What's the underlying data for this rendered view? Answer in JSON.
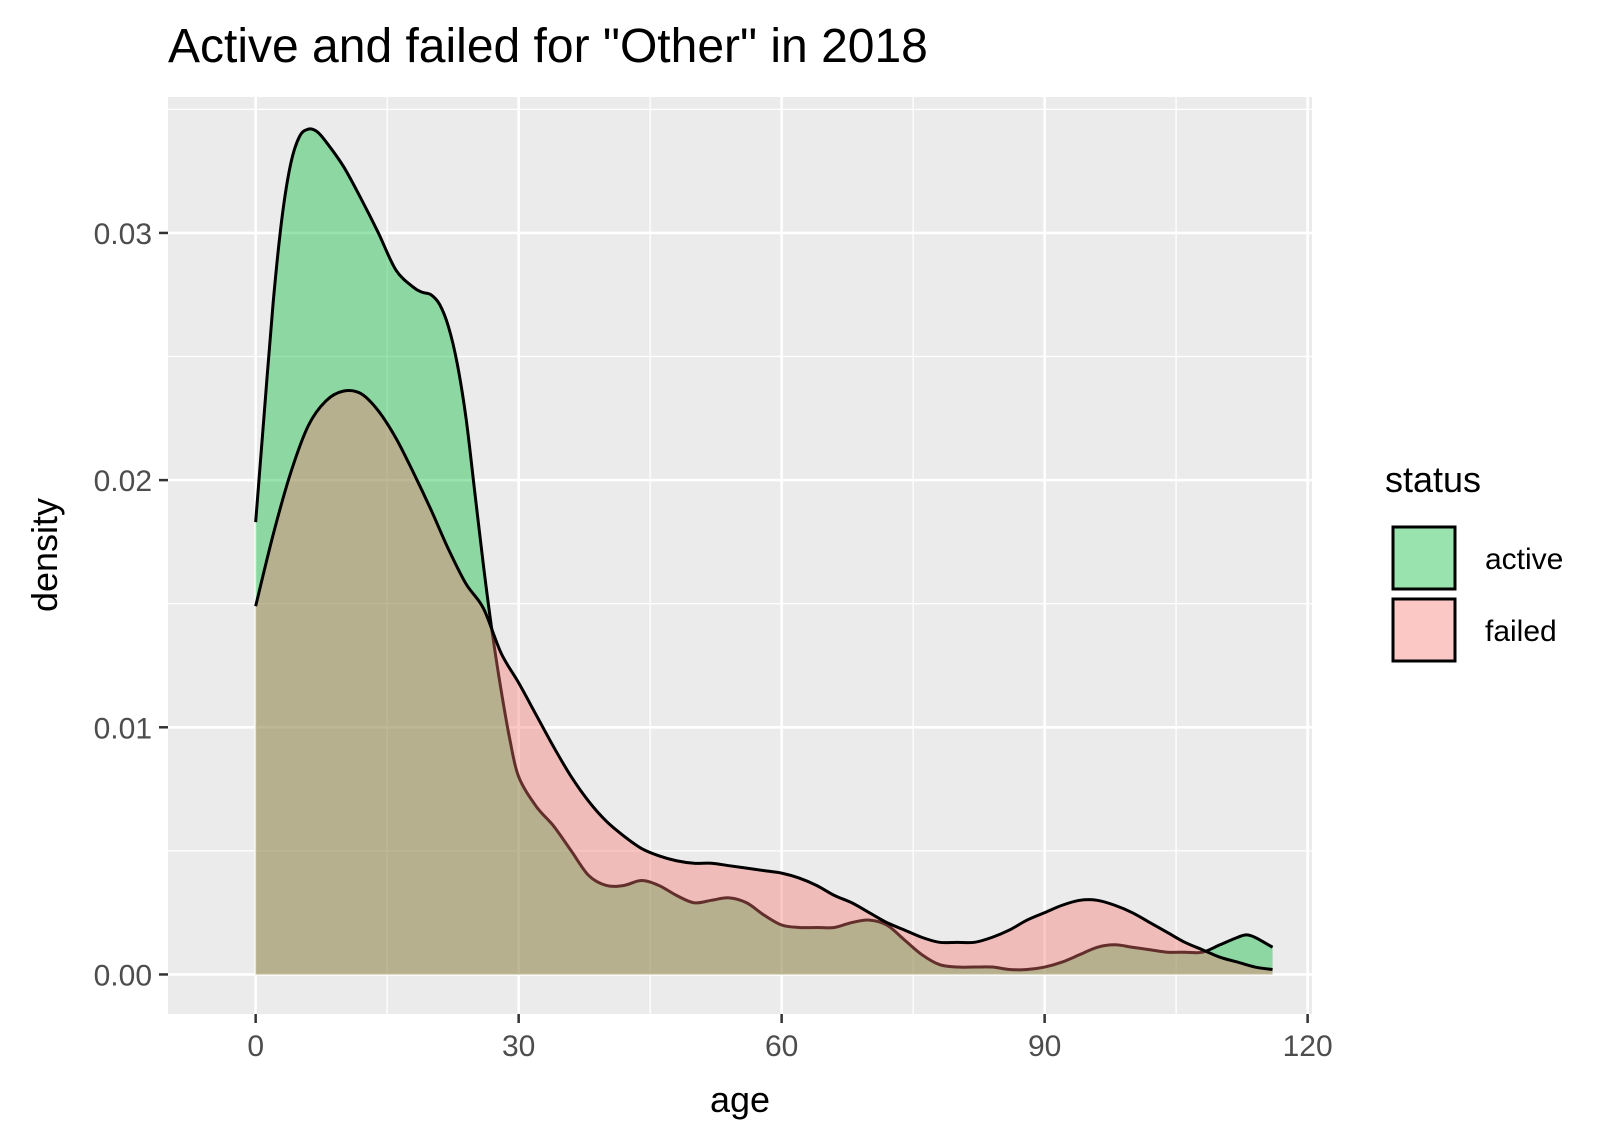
{
  "chart_data": {
    "type": "area",
    "title": "Active and failed for \"Other\" in 2018",
    "xlabel": "age",
    "ylabel": "density",
    "xlim": [
      -10,
      120.5
    ],
    "ylim": [
      -0.0016,
      0.0355
    ],
    "x_ticks": [
      0,
      30,
      60,
      90,
      120
    ],
    "x_tick_labels": [
      "0",
      "30",
      "60",
      "90",
      "120"
    ],
    "y_ticks": [
      0.0,
      0.01,
      0.02,
      0.03
    ],
    "y_tick_labels": [
      "0.00",
      "0.01",
      "0.02",
      "0.03"
    ],
    "grid": true,
    "legend": {
      "title": "status",
      "position": "right"
    },
    "series": [
      {
        "name": "active",
        "color": "#00BA38",
        "fill_opacity": 0.4,
        "x": [
          0,
          1,
          2,
          3,
          4,
          5,
          6,
          7,
          8,
          10,
          12,
          14,
          16,
          18,
          19,
          20,
          21,
          22,
          23,
          24,
          25,
          26,
          27,
          28,
          29,
          30,
          32,
          34,
          36,
          38,
          40,
          42,
          44,
          46,
          48,
          50,
          52,
          54,
          56,
          58,
          60,
          62,
          64,
          66,
          68,
          70,
          72,
          74,
          76,
          78,
          80,
          82,
          84,
          86,
          88,
          90,
          92,
          94,
          96,
          98,
          100,
          102,
          104,
          106,
          108,
          110,
          112,
          113,
          114,
          116
        ],
        "values": [
          0.0183,
          0.0228,
          0.0272,
          0.0306,
          0.0328,
          0.0339,
          0.0342,
          0.0341,
          0.0337,
          0.0327,
          0.0314,
          0.03,
          0.0285,
          0.0278,
          0.0276,
          0.0275,
          0.0271,
          0.0262,
          0.0247,
          0.0225,
          0.0195,
          0.0165,
          0.0138,
          0.0115,
          0.0095,
          0.008,
          0.0068,
          0.006,
          0.005,
          0.004,
          0.0036,
          0.0036,
          0.0038,
          0.0036,
          0.0032,
          0.0029,
          0.003,
          0.0031,
          0.0029,
          0.0024,
          0.002,
          0.0019,
          0.0019,
          0.0019,
          0.0021,
          0.0022,
          0.002,
          0.0014,
          0.0008,
          0.0004,
          0.0003,
          0.0003,
          0.0003,
          0.0002,
          0.0002,
          0.0003,
          0.0005,
          0.0008,
          0.0011,
          0.0012,
          0.0011,
          0.001,
          0.0009,
          0.0009,
          0.0009,
          0.0012,
          0.0015,
          0.0016,
          0.0015,
          0.0011
        ]
      },
      {
        "name": "failed",
        "color": "#F8766D",
        "fill_opacity": 0.4,
        "x": [
          0,
          2,
          4,
          6,
          8,
          10,
          12,
          14,
          16,
          18,
          20,
          22,
          24,
          26,
          28,
          30,
          32,
          34,
          36,
          38,
          40,
          42,
          44,
          46,
          48,
          50,
          52,
          54,
          56,
          58,
          60,
          62,
          64,
          66,
          68,
          70,
          72,
          74,
          76,
          78,
          80,
          82,
          84,
          86,
          88,
          90,
          92,
          94,
          96,
          98,
          100,
          102,
          104,
          106,
          108,
          110,
          112,
          114,
          116
        ],
        "values": [
          0.0149,
          0.0178,
          0.0203,
          0.0222,
          0.0232,
          0.0236,
          0.0235,
          0.0228,
          0.0217,
          0.0203,
          0.0188,
          0.0172,
          0.0158,
          0.0148,
          0.013,
          0.0118,
          0.0105,
          0.0092,
          0.008,
          0.007,
          0.0062,
          0.0056,
          0.0051,
          0.0048,
          0.0046,
          0.0045,
          0.0045,
          0.0044,
          0.0043,
          0.0042,
          0.0041,
          0.0039,
          0.0036,
          0.0032,
          0.0029,
          0.0025,
          0.0021,
          0.0018,
          0.0015,
          0.0013,
          0.0013,
          0.0013,
          0.0015,
          0.0018,
          0.0022,
          0.0025,
          0.0028,
          0.003,
          0.003,
          0.0028,
          0.0025,
          0.0021,
          0.0017,
          0.0013,
          0.001,
          0.0007,
          0.0005,
          0.0003,
          0.0002
        ]
      }
    ]
  }
}
